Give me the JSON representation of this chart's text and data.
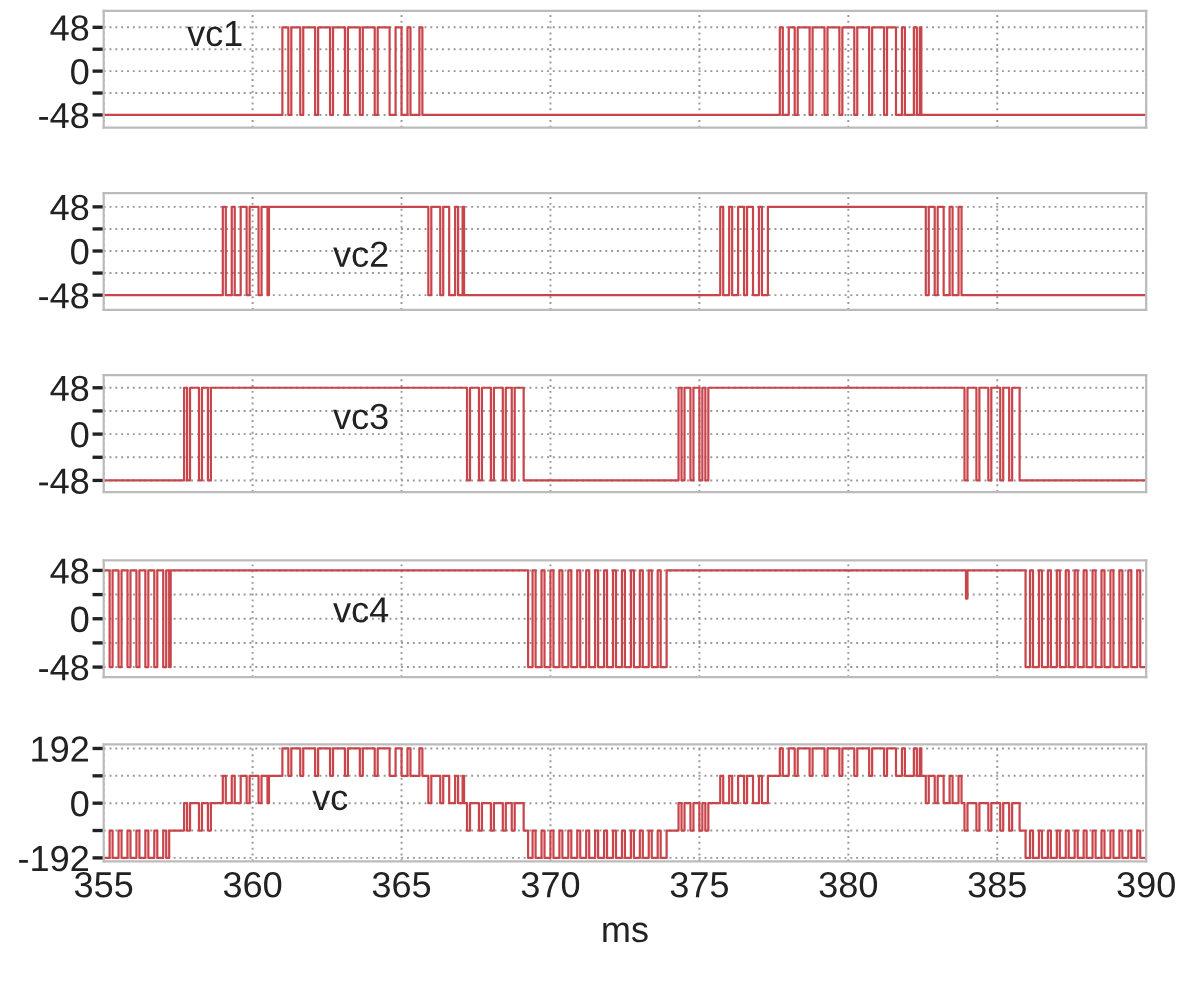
{
  "chart_data": [
    {
      "type": "step",
      "xlim": [
        355,
        390
      ],
      "xticks": [
        355,
        360,
        365,
        370,
        375,
        380,
        385,
        390
      ],
      "ylim": [
        -62,
        66
      ],
      "yticks": [
        48,
        {
          "value": 24,
          "label": null
        },
        0,
        {
          "value": -24,
          "label": null
        },
        -48
      ],
      "grid": true,
      "tick_labels": "y",
      "legend": false,
      "series": [
        {
          "name": "vc1",
          "color": "#c8464b",
          "x": [
            355,
            361.0,
            361.2,
            361.3,
            361.6,
            361.7,
            362.1,
            362.2,
            362.6,
            362.7,
            363.1,
            363.2,
            363.6,
            363.7,
            364.1,
            364.2,
            364.6,
            364.8,
            365.0,
            365.2,
            365.3,
            365.6,
            365.7,
            377.7,
            377.8,
            378.0,
            378.2,
            378.3,
            378.7,
            378.8,
            379.2,
            379.3,
            379.7,
            379.8,
            380.2,
            380.3,
            380.7,
            380.8,
            381.2,
            381.3,
            381.6,
            381.8,
            381.9,
            382.2,
            382.3,
            382.4,
            382.45,
            390
          ],
          "values": [
            -48,
            48,
            -48,
            48,
            -48,
            48,
            -48,
            48,
            -48,
            48,
            -48,
            48,
            -48,
            48,
            -48,
            48,
            -48,
            48,
            -48,
            48,
            -48,
            48,
            -48,
            48,
            -48,
            48,
            -48,
            48,
            -48,
            48,
            -48,
            48,
            -48,
            48,
            -48,
            48,
            -48,
            48,
            -48,
            48,
            -48,
            48,
            -48,
            48,
            -48,
            48,
            -48,
            -48
          ]
        }
      ]
    },
    {
      "type": "step",
      "xlim": [
        355,
        390
      ],
      "xticks": [
        355,
        360,
        365,
        370,
        375,
        380,
        385,
        390
      ],
      "ylim": [
        -64,
        63
      ],
      "yticks": [
        48,
        {
          "value": 24,
          "label": null
        },
        0,
        {
          "value": -24,
          "label": null
        },
        -48
      ],
      "grid": true,
      "tick_labels": "y",
      "legend": false,
      "series": [
        {
          "name": "vc2",
          "color": "#c8464b",
          "x": [
            355,
            359.0,
            359.1,
            359.3,
            359.4,
            359.6,
            359.8,
            359.9,
            360.2,
            360.3,
            360.5,
            360.55,
            365.9,
            366.0,
            366.3,
            366.4,
            366.6,
            366.8,
            366.9,
            367.05,
            367.1,
            375.7,
            375.8,
            376.0,
            376.1,
            376.3,
            376.5,
            376.6,
            376.8,
            377.0,
            377.1,
            377.3,
            382.6,
            382.7,
            382.9,
            383.0,
            383.2,
            383.4,
            383.5,
            383.7,
            383.8,
            390
          ],
          "values": [
            -48,
            48,
            -48,
            48,
            -48,
            48,
            -48,
            48,
            -48,
            48,
            -48,
            48,
            -48,
            48,
            -48,
            48,
            -48,
            48,
            -48,
            48,
            -48,
            48,
            -48,
            48,
            -48,
            48,
            -48,
            48,
            -48,
            48,
            -48,
            48,
            -48,
            48,
            -48,
            48,
            -48,
            48,
            -48,
            48,
            -48,
            -48
          ]
        }
      ]
    },
    {
      "type": "step",
      "xlim": [
        355,
        390
      ],
      "xticks": [
        355,
        360,
        365,
        370,
        375,
        380,
        385,
        390
      ],
      "ylim": [
        -60,
        61
      ],
      "yticks": [
        48,
        {
          "value": 24,
          "label": null
        },
        0,
        {
          "value": -24,
          "label": null
        },
        -48
      ],
      "grid": true,
      "tick_labels": "y",
      "legend": false,
      "series": [
        {
          "name": "vc3",
          "color": "#c8464b",
          "x": [
            355,
            357.7,
            357.8,
            357.9,
            358.2,
            358.3,
            358.5,
            358.6,
            367.2,
            367.3,
            367.6,
            367.7,
            368.0,
            368.1,
            368.4,
            368.5,
            368.7,
            368.8,
            369.1,
            374.3,
            374.4,
            374.5,
            374.7,
            374.8,
            375.0,
            375.1,
            375.2,
            375.3,
            383.9,
            384.0,
            384.3,
            384.4,
            384.7,
            384.8,
            385.1,
            385.2,
            385.4,
            385.5,
            385.75,
            390
          ],
          "values": [
            -48,
            48,
            -48,
            48,
            -48,
            48,
            -48,
            48,
            -48,
            48,
            -48,
            48,
            -48,
            48,
            -48,
            48,
            -48,
            48,
            -48,
            48,
            -48,
            48,
            -48,
            48,
            -48,
            48,
            -48,
            48,
            -48,
            48,
            -48,
            48,
            -48,
            48,
            -48,
            48,
            -48,
            48,
            -48,
            -48
          ]
        }
      ]
    },
    {
      "type": "step",
      "xlim": [
        355,
        390
      ],
      "xticks": [
        355,
        360,
        365,
        370,
        375,
        380,
        385,
        390
      ],
      "ylim": [
        -58,
        58
      ],
      "yticks": [
        48,
        {
          "value": 24,
          "label": null
        },
        0,
        {
          "value": -24,
          "label": null
        },
        -48
      ],
      "grid": true,
      "tick_labels": "y",
      "legend": false,
      "series": [
        {
          "name": "vc4",
          "color": "#c8464b",
          "x": [
            355,
            355.2,
            355.3,
            355.5,
            355.6,
            355.8,
            355.9,
            356.1,
            356.2,
            356.4,
            356.5,
            356.7,
            356.8,
            357.0,
            357.1,
            357.2,
            357.25,
            369.25,
            369.4,
            369.5,
            369.7,
            369.8,
            370.0,
            370.1,
            370.3,
            370.4,
            370.6,
            370.7,
            370.9,
            371.0,
            371.2,
            371.3,
            371.5,
            371.6,
            371.8,
            371.9,
            372.1,
            372.2,
            372.4,
            372.5,
            372.7,
            372.8,
            373.0,
            373.1,
            373.3,
            373.4,
            373.6,
            373.7,
            373.9,
            383.95,
            384.0,
            385.95,
            386.1,
            386.2,
            386.4,
            386.5,
            386.7,
            386.8,
            387.0,
            387.1,
            387.3,
            387.4,
            387.6,
            387.7,
            387.9,
            388.0,
            388.2,
            388.3,
            388.5,
            388.6,
            388.8,
            388.9,
            389.1,
            389.2,
            389.4,
            389.5,
            389.7,
            389.8,
            390
          ],
          "values": [
            48,
            -48,
            48,
            -48,
            48,
            -48,
            48,
            -48,
            48,
            -48,
            48,
            -48,
            48,
            -48,
            48,
            -48,
            48,
            -48,
            48,
            -48,
            48,
            -48,
            48,
            -48,
            48,
            -48,
            48,
            -48,
            48,
            -48,
            48,
            -48,
            48,
            -48,
            48,
            -48,
            48,
            -48,
            48,
            -48,
            48,
            -48,
            48,
            -48,
            48,
            -48,
            48,
            -48,
            48,
            20,
            48,
            -48,
            48,
            -48,
            48,
            -48,
            48,
            -48,
            48,
            -48,
            48,
            -48,
            48,
            -48,
            48,
            -48,
            48,
            -48,
            48,
            -48,
            48,
            -48,
            48,
            -48,
            48,
            -48,
            48,
            -48,
            -48
          ]
        }
      ]
    },
    {
      "type": "step",
      "xlim": [
        355,
        390
      ],
      "xticks": [
        355,
        360,
        365,
        370,
        375,
        380,
        385,
        390
      ],
      "ylim": [
        -204,
        206
      ],
      "yticks": [
        192,
        {
          "value": 96,
          "label": null
        },
        0,
        {
          "value": -96,
          "label": null
        },
        -192
      ],
      "grid": true,
      "xlabel": "ms",
      "legend": false,
      "series": [
        {
          "name": "vc",
          "color": "#c8464b",
          "x": [
            355,
            355.2,
            355.3,
            355.5,
            355.6,
            355.8,
            355.9,
            356.1,
            356.2,
            356.4,
            356.5,
            356.7,
            356.8,
            357.0,
            357.1,
            357.2,
            357.7,
            357.8,
            357.9,
            358.2,
            358.3,
            358.5,
            358.6,
            359.0,
            359.1,
            359.3,
            359.4,
            359.6,
            359.8,
            359.9,
            360.2,
            360.3,
            360.5,
            360.55,
            361.0,
            361.2,
            361.3,
            361.6,
            361.7,
            362.1,
            362.2,
            362.6,
            362.7,
            363.1,
            363.2,
            363.6,
            363.7,
            364.1,
            364.2,
            364.6,
            364.8,
            365.0,
            365.2,
            365.3,
            365.6,
            365.7,
            365.9,
            366.0,
            366.3,
            366.4,
            366.6,
            366.8,
            366.9,
            367.05,
            367.1,
            367.2,
            367.3,
            367.6,
            367.7,
            368.0,
            368.1,
            368.4,
            368.5,
            368.7,
            368.8,
            369.1,
            369.25,
            369.4,
            369.5,
            369.7,
            369.8,
            370.0,
            370.1,
            370.3,
            370.4,
            370.6,
            370.7,
            370.9,
            371.0,
            371.2,
            371.3,
            371.5,
            371.6,
            371.8,
            371.9,
            372.1,
            372.2,
            372.4,
            372.5,
            372.7,
            372.8,
            373.0,
            373.1,
            373.3,
            373.4,
            373.6,
            373.7,
            373.9,
            374.3,
            374.4,
            374.5,
            374.7,
            374.8,
            375.0,
            375.1,
            375.2,
            375.3,
            375.7,
            375.8,
            376.0,
            376.1,
            376.3,
            376.5,
            376.6,
            376.8,
            377.0,
            377.1,
            377.3,
            377.7,
            377.8,
            378.0,
            378.2,
            378.3,
            378.7,
            378.8,
            379.2,
            379.3,
            379.7,
            379.8,
            380.2,
            380.3,
            380.7,
            380.8,
            381.2,
            381.3,
            381.6,
            381.8,
            381.9,
            382.2,
            382.3,
            382.4,
            382.45,
            382.6,
            382.7,
            382.9,
            383.0,
            383.2,
            383.4,
            383.5,
            383.7,
            383.8,
            383.9,
            384.0,
            384.3,
            384.4,
            384.7,
            384.8,
            385.1,
            385.2,
            385.4,
            385.5,
            385.75,
            385.95,
            386.1,
            386.2,
            386.4,
            386.5,
            386.7,
            386.8,
            387.0,
            387.1,
            387.3,
            387.4,
            387.6,
            387.7,
            387.9,
            388.0,
            388.2,
            388.3,
            388.5,
            388.6,
            388.8,
            388.9,
            389.1,
            389.2,
            389.4,
            389.5,
            389.7,
            389.8,
            390
          ],
          "values": [
            -192,
            -96,
            -192,
            -96,
            -192,
            -96,
            -192,
            -96,
            -192,
            -96,
            -192,
            -96,
            -192,
            -96,
            -192,
            -96,
            0,
            -96,
            0,
            -96,
            0,
            -96,
            0,
            96,
            0,
            96,
            0,
            96,
            0,
            96,
            0,
            96,
            0,
            96,
            192,
            96,
            192,
            96,
            192,
            96,
            192,
            96,
            192,
            96,
            192,
            96,
            192,
            96,
            192,
            96,
            192,
            96,
            192,
            96,
            192,
            96,
            0,
            96,
            0,
            96,
            0,
            96,
            0,
            96,
            0,
            -96,
            0,
            -96,
            0,
            -96,
            0,
            -96,
            0,
            -96,
            0,
            -96,
            -192,
            -96,
            -192,
            -96,
            -192,
            -96,
            -192,
            -96,
            -192,
            -96,
            -192,
            -96,
            -192,
            -96,
            -192,
            -96,
            -192,
            -96,
            -192,
            -96,
            -192,
            -96,
            -192,
            -96,
            -192,
            -96,
            -192,
            -96,
            -192,
            -96,
            -192,
            -96,
            0,
            -96,
            0,
            -96,
            0,
            -96,
            0,
            -96,
            0,
            96,
            0,
            96,
            0,
            96,
            0,
            96,
            0,
            96,
            0,
            96,
            192,
            96,
            192,
            96,
            192,
            96,
            192,
            96,
            192,
            96,
            192,
            96,
            192,
            96,
            192,
            96,
            192,
            96,
            192,
            96,
            192,
            96,
            192,
            96,
            0,
            96,
            0,
            96,
            0,
            96,
            0,
            96,
            0,
            -96,
            0,
            -96,
            0,
            -96,
            0,
            -96,
            0,
            -96,
            0,
            -96,
            -192,
            -96,
            -192,
            -96,
            -192,
            -96,
            -192,
            -96,
            -192,
            -96,
            -192,
            -96,
            -192,
            -96,
            -192,
            -96,
            -192,
            -96,
            -192,
            -96,
            -192,
            -96,
            -192,
            -96,
            -192,
            -96,
            -192,
            -192
          ]
        }
      ]
    }
  ]
}
